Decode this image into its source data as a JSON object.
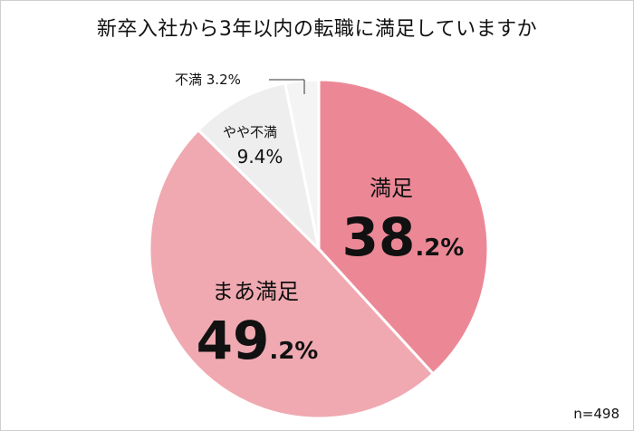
{
  "chart_data": {
    "type": "pie",
    "title": "新卒入社から3年以内の転職に満足していますか",
    "note": "n=498",
    "slices": [
      {
        "label": "満足",
        "value": 38.2,
        "int_text": "38",
        "dec_text": ".2%",
        "color": "#ec8896"
      },
      {
        "label": "まあ満足",
        "value": 49.2,
        "int_text": "49",
        "dec_text": ".2%",
        "color": "#f0a9b1"
      },
      {
        "label": "やや不満",
        "value": 9.4,
        "text": "9.4%",
        "color": "#eeeeee"
      },
      {
        "label": "不満",
        "value": 3.2,
        "text": "3.2%",
        "color": "#f4f4f4"
      }
    ]
  }
}
